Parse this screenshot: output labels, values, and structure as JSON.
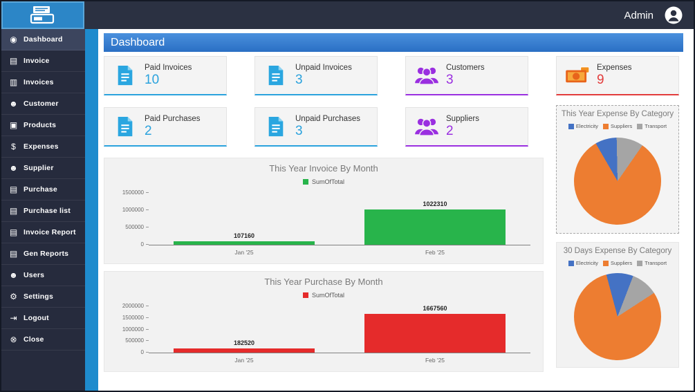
{
  "window": {
    "admin_label": "Admin"
  },
  "header": {
    "title": "Dashboard"
  },
  "sidebar": {
    "items": [
      {
        "label": "Dashboard",
        "icon": "dashboard-icon",
        "glyph": "◉"
      },
      {
        "label": "Invoice",
        "icon": "invoice-icon",
        "glyph": "▤"
      },
      {
        "label": "Invoices",
        "icon": "invoices-icon",
        "glyph": "▥"
      },
      {
        "label": "Customer",
        "icon": "customer-icon",
        "glyph": "☻"
      },
      {
        "label": "Products",
        "icon": "products-icon",
        "glyph": "▣"
      },
      {
        "label": "Expenses",
        "icon": "expenses-icon",
        "glyph": "$"
      },
      {
        "label": "Supplier",
        "icon": "supplier-icon",
        "glyph": "☻"
      },
      {
        "label": "Purchase",
        "icon": "purchase-icon",
        "glyph": "▤"
      },
      {
        "label": "Purchase list",
        "icon": "purchase-list-icon",
        "glyph": "▤"
      },
      {
        "label": "Invoice Report",
        "icon": "invoice-report-icon",
        "glyph": "▤"
      },
      {
        "label": "Gen Reports",
        "icon": "gen-reports-icon",
        "glyph": "▤"
      },
      {
        "label": "Users",
        "icon": "users-icon",
        "glyph": "☻"
      },
      {
        "label": "Settings",
        "icon": "settings-icon",
        "glyph": "⚙"
      },
      {
        "label": "Logout",
        "icon": "logout-icon",
        "glyph": "⇥"
      },
      {
        "label": "Close",
        "icon": "close-icon",
        "glyph": "⊗"
      }
    ]
  },
  "cards": [
    {
      "label": "Paid Invoices",
      "value": "10",
      "color": "#2aa2dd",
      "icon": "invoice-document-icon"
    },
    {
      "label": "Unpaid Invoices",
      "value": "3",
      "color": "#2aa2dd",
      "icon": "invoice-document-icon"
    },
    {
      "label": "Customers",
      "value": "3",
      "color": "#9a2fe0",
      "icon": "customers-icon"
    },
    {
      "label": "Expenses",
      "value": "9",
      "color": "#e23b3b",
      "icon": "money-icon"
    },
    {
      "label": "Paid Purchases",
      "value": "2",
      "color": "#2aa2dd",
      "icon": "invoice-document-icon"
    },
    {
      "label": "Unpaid Purchases",
      "value": "3",
      "color": "#2aa2dd",
      "icon": "invoice-document-icon"
    },
    {
      "label": "Suppliers",
      "value": "2",
      "color": "#9a2fe0",
      "icon": "customers-icon"
    }
  ],
  "chart_data": [
    {
      "type": "bar",
      "title": "This Year Invoice By Month",
      "legend": [
        {
          "label": "SumOfTotal",
          "color": "#28b44b"
        }
      ],
      "legend_position": "top",
      "categories": [
        "Jan '25",
        "Feb '25"
      ],
      "values": [
        107160,
        1022310
      ],
      "y_ticks": [
        0,
        500000,
        1000000,
        1500000
      ],
      "ylim": [
        0,
        1500000
      ],
      "grid": false
    },
    {
      "type": "bar",
      "title": "This Year Purchase By Month",
      "legend": [
        {
          "label": "SumOfTotal",
          "color": "#e52b2b"
        }
      ],
      "legend_position": "top",
      "categories": [
        "Jan '25",
        "Feb '25"
      ],
      "values": [
        182520,
        1667560
      ],
      "y_ticks": [
        0,
        500000,
        1000000,
        1500000,
        2000000
      ],
      "ylim": [
        0,
        2000000
      ],
      "grid": false
    },
    {
      "type": "pie",
      "title": "This Year Expense By Category",
      "legend_position": "top",
      "slices": [
        {
          "label": "Electricity",
          "color": "#4472c4",
          "value": 8
        },
        {
          "label": "Suppliers",
          "color": "#ed7d31",
          "value": 82
        },
        {
          "label": "Transport",
          "color": "#a5a5a5",
          "value": 10
        }
      ],
      "draw_order": [
        0,
        2,
        1
      ],
      "start_angle_deg": -30
    },
    {
      "type": "pie",
      "title": "30 Days Expense By Category",
      "legend_position": "top",
      "slices": [
        {
          "label": "Electricity",
          "color": "#4472c4",
          "value": 10
        },
        {
          "label": "Suppliers",
          "color": "#ed7d31",
          "value": 80
        },
        {
          "label": "Transport",
          "color": "#a5a5a5",
          "value": 10
        }
      ],
      "draw_order": [
        0,
        2,
        1
      ],
      "start_angle_deg": -15
    }
  ]
}
